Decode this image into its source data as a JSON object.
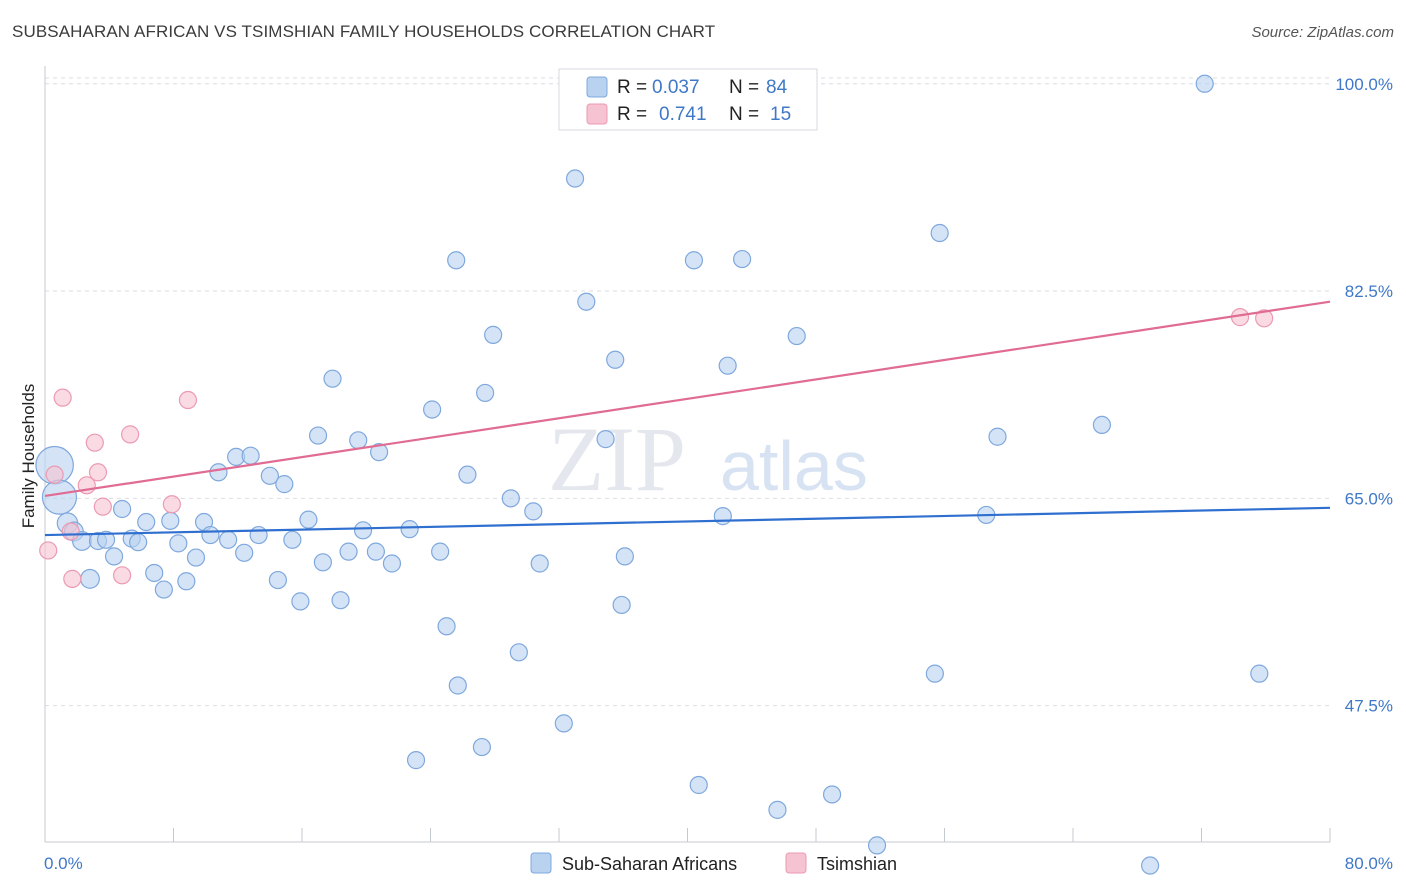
{
  "title": "SUBSAHARAN AFRICAN VS TSIMSHIAN FAMILY HOUSEHOLDS CORRELATION CHART",
  "source": "Source: ZipAtlas.com",
  "watermark": {
    "zip": "ZIP",
    "atlas": "atlas"
  },
  "colors": {
    "blue_fill": "#b8d2f0",
    "blue_stroke": "#7fa8dd",
    "blue_line": "#2f6fcf",
    "pink_fill": "#f6c3d2",
    "pink_stroke": "#ec9ab3",
    "pink_line": "#e06b93",
    "grid": "#d9dde3",
    "tick_text": "#3f78c7"
  },
  "legend": {
    "rows": [
      {
        "r_label": "R =",
        "r_value": "0.037",
        "n_label": "N =",
        "n_value": "84"
      },
      {
        "r_label": "R =",
        "r_value": "0.741",
        "n_label": "N =",
        "n_value": "15"
      }
    ]
  },
  "bottom_legend": [
    "Sub-Saharan Africans",
    "Tsimshian"
  ],
  "chart_data": {
    "type": "scatter",
    "title": "SUBSAHARAN AFRICAN VS TSIMSHIAN FAMILY HOUSEHOLDS CORRELATION CHART",
    "xlabel": "",
    "ylabel": "Family Households",
    "xlim": [
      0,
      80
    ],
    "ylim": [
      37.0,
      101.5
    ],
    "x_tick_labels": [
      "0.0%",
      "80.0%"
    ],
    "y_ticks": [
      47.5,
      65.0,
      82.5,
      100.0
    ],
    "y_tick_labels": [
      "47.5%",
      "65.0%",
      "82.5%",
      "100.0%"
    ],
    "grid": true,
    "series": [
      {
        "name": "Sub-Saharan Africans",
        "r": 0.037,
        "n": 84,
        "trend": {
          "x": [
            0,
            80
          ],
          "y": [
            61.9,
            64.2
          ]
        },
        "points": [
          {
            "x": 0.6,
            "y": 67.8,
            "s": 2.2
          },
          {
            "x": 0.9,
            "y": 65.1,
            "s": 2.0
          },
          {
            "x": 1.4,
            "y": 62.9,
            "s": 1.2
          },
          {
            "x": 1.8,
            "y": 62.2,
            "s": 1.1
          },
          {
            "x": 2.3,
            "y": 61.4,
            "s": 1.1
          },
          {
            "x": 2.8,
            "y": 58.2,
            "s": 1.1
          },
          {
            "x": 3.3,
            "y": 61.4
          },
          {
            "x": 3.8,
            "y": 61.5
          },
          {
            "x": 4.3,
            "y": 60.1
          },
          {
            "x": 4.8,
            "y": 64.1
          },
          {
            "x": 5.4,
            "y": 61.6
          },
          {
            "x": 5.8,
            "y": 61.3
          },
          {
            "x": 6.3,
            "y": 63.0
          },
          {
            "x": 6.8,
            "y": 58.7
          },
          {
            "x": 7.4,
            "y": 57.3
          },
          {
            "x": 7.8,
            "y": 63.1
          },
          {
            "x": 8.3,
            "y": 61.2
          },
          {
            "x": 8.8,
            "y": 58.0
          },
          {
            "x": 9.4,
            "y": 60.0
          },
          {
            "x": 9.9,
            "y": 63.0
          },
          {
            "x": 10.3,
            "y": 61.9
          },
          {
            "x": 10.8,
            "y": 67.2
          },
          {
            "x": 11.4,
            "y": 61.5
          },
          {
            "x": 11.9,
            "y": 68.5
          },
          {
            "x": 12.4,
            "y": 60.4
          },
          {
            "x": 12.8,
            "y": 68.6
          },
          {
            "x": 13.3,
            "y": 61.9
          },
          {
            "x": 14.0,
            "y": 66.9
          },
          {
            "x": 14.5,
            "y": 58.1
          },
          {
            "x": 14.9,
            "y": 66.2
          },
          {
            "x": 15.4,
            "y": 61.5
          },
          {
            "x": 15.9,
            "y": 56.3
          },
          {
            "x": 16.4,
            "y": 63.2
          },
          {
            "x": 17.0,
            "y": 70.3
          },
          {
            "x": 17.3,
            "y": 59.6
          },
          {
            "x": 17.9,
            "y": 75.1
          },
          {
            "x": 18.4,
            "y": 56.4
          },
          {
            "x": 18.9,
            "y": 60.5
          },
          {
            "x": 19.5,
            "y": 69.9
          },
          {
            "x": 19.8,
            "y": 62.3
          },
          {
            "x": 20.6,
            "y": 60.5
          },
          {
            "x": 20.8,
            "y": 68.9
          },
          {
            "x": 21.6,
            "y": 59.5
          },
          {
            "x": 22.7,
            "y": 62.4
          },
          {
            "x": 23.1,
            "y": 42.9
          },
          {
            "x": 24.1,
            "y": 72.5
          },
          {
            "x": 24.6,
            "y": 60.5
          },
          {
            "x": 25.0,
            "y": 54.2
          },
          {
            "x": 25.6,
            "y": 85.1
          },
          {
            "x": 25.7,
            "y": 49.2
          },
          {
            "x": 26.3,
            "y": 67.0
          },
          {
            "x": 27.2,
            "y": 44.0
          },
          {
            "x": 27.4,
            "y": 73.9
          },
          {
            "x": 27.9,
            "y": 78.8
          },
          {
            "x": 29.0,
            "y": 65.0
          },
          {
            "x": 29.5,
            "y": 52.0
          },
          {
            "x": 30.4,
            "y": 63.9
          },
          {
            "x": 30.8,
            "y": 59.5
          },
          {
            "x": 32.3,
            "y": 46.0
          },
          {
            "x": 33.0,
            "y": 92.0
          },
          {
            "x": 33.7,
            "y": 81.6
          },
          {
            "x": 34.9,
            "y": 70.0
          },
          {
            "x": 35.5,
            "y": 76.7
          },
          {
            "x": 35.9,
            "y": 56.0
          },
          {
            "x": 36.1,
            "y": 60.1
          },
          {
            "x": 40.4,
            "y": 85.1
          },
          {
            "x": 40.7,
            "y": 40.8
          },
          {
            "x": 42.2,
            "y": 63.5
          },
          {
            "x": 42.5,
            "y": 76.2
          },
          {
            "x": 43.4,
            "y": 85.2
          },
          {
            "x": 45.6,
            "y": 38.7
          },
          {
            "x": 46.8,
            "y": 78.7
          },
          {
            "x": 49.0,
            "y": 40.0
          },
          {
            "x": 51.8,
            "y": 35.7
          },
          {
            "x": 55.4,
            "y": 50.2
          },
          {
            "x": 55.7,
            "y": 87.4
          },
          {
            "x": 58.6,
            "y": 63.6
          },
          {
            "x": 59.3,
            "y": 70.2
          },
          {
            "x": 65.8,
            "y": 71.2
          },
          {
            "x": 68.8,
            "y": 34.0
          },
          {
            "x": 72.2,
            "y": 100.0
          },
          {
            "x": 75.6,
            "y": 50.2
          }
        ]
      },
      {
        "name": "Tsimshian",
        "r": 0.741,
        "n": 15,
        "trend": {
          "x": [
            0,
            80
          ],
          "y": [
            65.2,
            81.6
          ]
        },
        "points": [
          {
            "x": 0.2,
            "y": 60.6
          },
          {
            "x": 0.6,
            "y": 67.0
          },
          {
            "x": 1.1,
            "y": 73.5
          },
          {
            "x": 1.6,
            "y": 62.2
          },
          {
            "x": 1.7,
            "y": 58.2
          },
          {
            "x": 2.6,
            "y": 66.1
          },
          {
            "x": 3.1,
            "y": 69.7
          },
          {
            "x": 3.3,
            "y": 67.2
          },
          {
            "x": 3.6,
            "y": 64.3
          },
          {
            "x": 4.8,
            "y": 58.5
          },
          {
            "x": 5.3,
            "y": 70.4
          },
          {
            "x": 7.9,
            "y": 64.5
          },
          {
            "x": 8.9,
            "y": 73.3
          },
          {
            "x": 74.4,
            "y": 80.3
          },
          {
            "x": 75.9,
            "y": 80.2
          }
        ]
      }
    ]
  }
}
